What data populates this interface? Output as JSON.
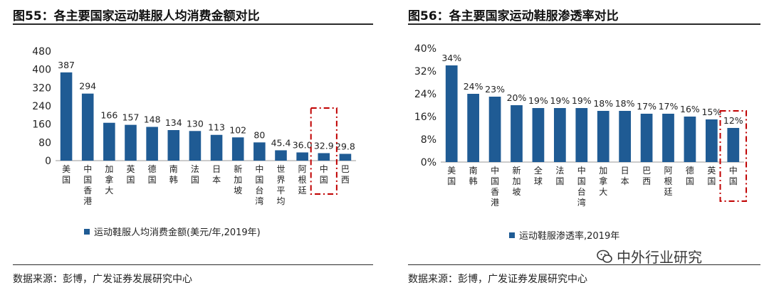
{
  "panels": [
    {
      "title": "图55：各主要国家运动鞋服人均消费金额对比",
      "source": "数据来源：彭博，广发证券发展研究中心"
    },
    {
      "title": "图56：各主要国家运动鞋服渗透率对比",
      "source": "数据来源：彭博，广发证券发展研究中心"
    }
  ],
  "watermark": {
    "text": "中外行业研究"
  },
  "colors": {
    "bar": "#1f5b94",
    "highlight": "#c00000"
  },
  "chart_data": [
    {
      "type": "bar",
      "categories": [
        "美国",
        "中国香港",
        "加拿大",
        "英国",
        "德国",
        "南韩",
        "法国",
        "日本",
        "新加坡",
        "中国台湾",
        "世界平均",
        "阿根廷",
        "中国",
        "巴西"
      ],
      "values": [
        387,
        294,
        166,
        157,
        148,
        134,
        130,
        113,
        102,
        80,
        45.4,
        36.0,
        32.9,
        29.8
      ],
      "data_labels": [
        "387",
        "294",
        "166",
        "157",
        "148",
        "134",
        "130",
        "113",
        "102",
        "80",
        "45.4",
        "36.0",
        "32.9",
        "29.8"
      ],
      "yticks": [
        "480",
        "400",
        "320",
        "240",
        "160",
        "80",
        "0"
      ],
      "ylim": [
        0,
        480
      ],
      "legend": "运动鞋服人均消费金额(美元/年,2019年)",
      "highlight": "中国"
    },
    {
      "type": "bar",
      "categories": [
        "美国",
        "南韩",
        "中国香港",
        "新加坡",
        "全球",
        "法国",
        "中国台湾",
        "加拿大",
        "日本",
        "巴西",
        "阿根廷",
        "德国",
        "英国",
        "中国"
      ],
      "values": [
        34,
        24,
        23,
        20,
        19,
        19,
        19,
        18,
        18,
        17,
        17,
        16,
        15,
        12
      ],
      "data_labels": [
        "34%",
        "24%",
        "23%",
        "20%",
        "19%",
        "19%",
        "19%",
        "18%",
        "18%",
        "17%",
        "17%",
        "16%",
        "15%",
        "12%"
      ],
      "yticks": [
        "40%",
        "32%",
        "24%",
        "16%",
        "8%",
        "0%"
      ],
      "ylim": [
        0,
        40
      ],
      "legend": "运动鞋服渗透率,2019年",
      "highlight": "中国"
    }
  ]
}
